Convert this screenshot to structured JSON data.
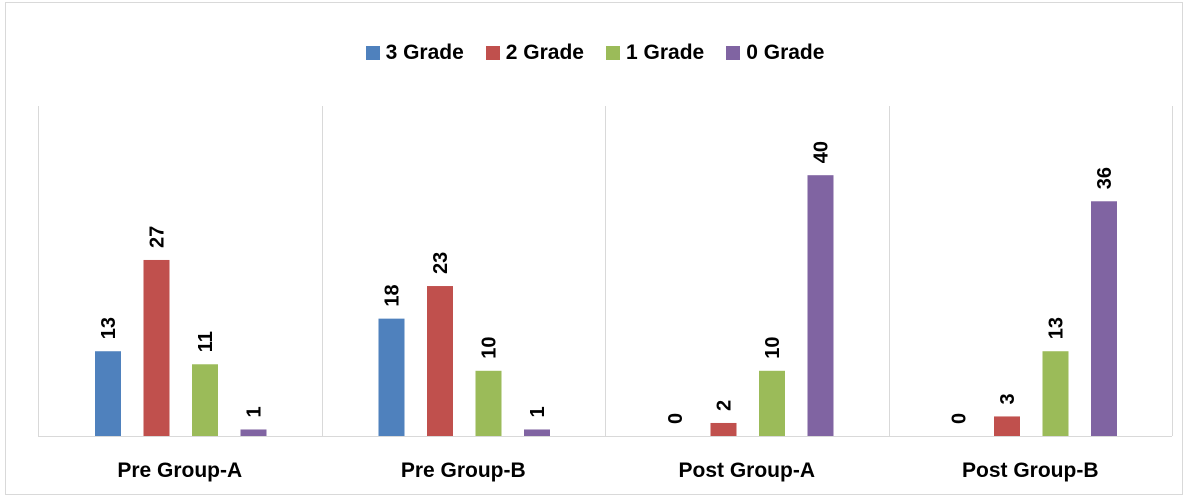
{
  "chart_data": {
    "type": "bar",
    "title": "",
    "xlabel": "",
    "ylabel": "",
    "categories": [
      "Pre Group-A",
      "Pre Group-B",
      "Post Group-A",
      "Post Group-B"
    ],
    "series": [
      {
        "name": "3 Grade",
        "color": "#4f81bd",
        "values": [
          13,
          18,
          0,
          0
        ]
      },
      {
        "name": "2 Grade",
        "color": "#c0504d",
        "values": [
          27,
          23,
          2,
          3
        ]
      },
      {
        "name": "1 Grade",
        "color": "#9bbb59",
        "values": [
          11,
          10,
          10,
          13
        ]
      },
      {
        "name": "0 Grade",
        "color": "#8064a2",
        "values": [
          1,
          1,
          40,
          36
        ]
      }
    ],
    "ylim": [
      0,
      45
    ],
    "grid": false,
    "legend_position": "top",
    "data_labels": true
  }
}
